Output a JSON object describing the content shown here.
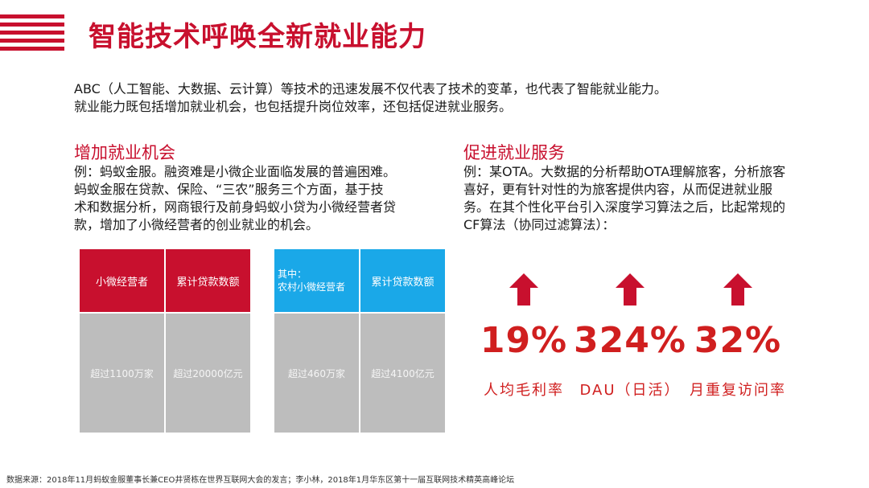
{
  "title": "智能技术呼唤全新就业能力",
  "intro": {
    "line1": "ABC（人工智能、大数据、云计算）等技术的迅速发展不仅代表了技术的变革，也代表了智能就业能力。",
    "line2": "就业能力既包括增加就业机会，也包括提升岗位效率，还包括促进就业服务。"
  },
  "left_section": {
    "heading": "增加就业机会",
    "lines": [
      "例：蚂蚁金服。融资难是小微企业面临发展的普遍困难。",
      "蚂蚁金服在贷款、保险、“三农”服务三个方面，基于技",
      "术和数据分析，网商银行及前身蚂蚁小贷为小微经营者贷",
      "款，增加了小微经营者的创业就业的机会。"
    ]
  },
  "right_section": {
    "heading": "促进就业服务",
    "lines": [
      "例：某OTA。大数据的分析帮助OTA理解旅客，分析旅客",
      "喜好，更有针对性的为旅客提供内容，从而促进就业服",
      "务。在其个性化平台引入深度学习算法之后，比起常规的",
      "CF算法（协同过滤算法）："
    ]
  },
  "table_red": {
    "header": [
      "小微经营者",
      "累计贷款数额"
    ],
    "values": [
      "超过1100万家",
      "超过20000亿元"
    ]
  },
  "table_blue": {
    "header_a1": "其中：",
    "header_a2": "农村小微经营者",
    "header_b": "累计贷款数额",
    "values": [
      "超过460万家",
      "超过4100亿元"
    ]
  },
  "stats": [
    {
      "value": "19%",
      "label": "人均毛利率",
      "direction": "up"
    },
    {
      "value": "324%",
      "label": "DAU（日活）",
      "direction": "up"
    },
    {
      "value": "32%",
      "label": "月重复访问率",
      "direction": "up"
    }
  ],
  "footer": "数据来源：2018年11月蚂蚁金服董事长兼CEO井贤栋在世界互联网大会的发言；李小林，2018年1月华东区第十一届互联网技术精英高峰论坛",
  "colors": {
    "accent": "#c8102e",
    "blue": "#1aa8e8",
    "gray": "#bdbdbd",
    "stat": "#d01f1f"
  }
}
